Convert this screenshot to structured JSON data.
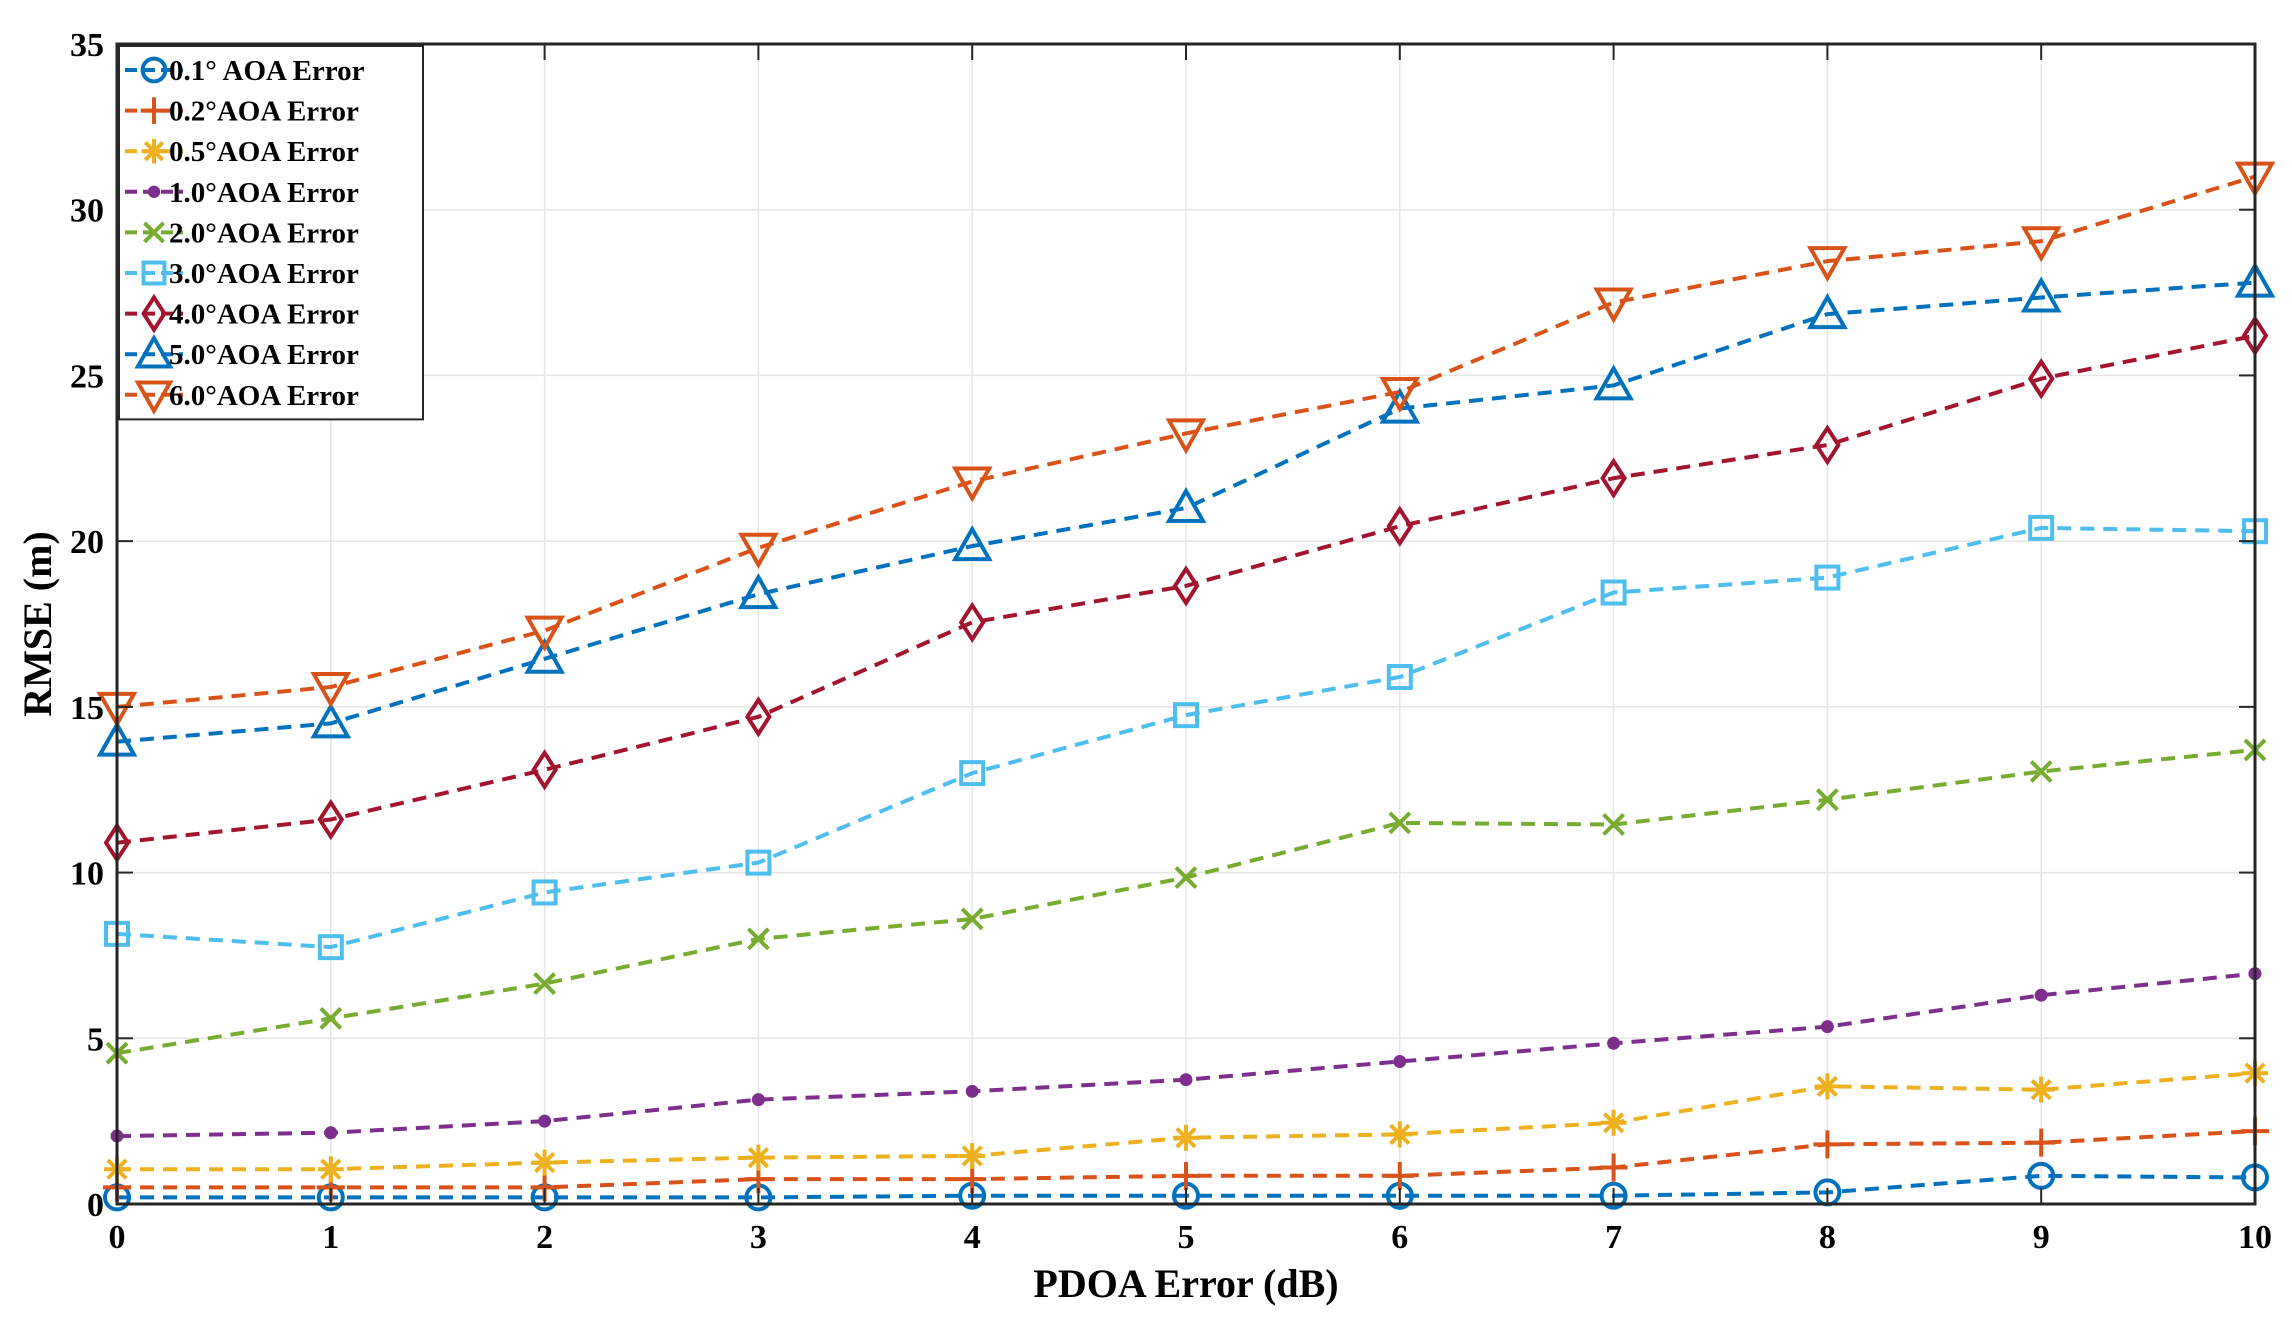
{
  "chart_data": {
    "type": "line",
    "title": "",
    "xlabel": "PDOA Error (dB)",
    "ylabel": "RMSE (m)",
    "xlim": [
      0,
      10
    ],
    "ylim": [
      0,
      35
    ],
    "xticks": [
      "0",
      "1",
      "2",
      "3",
      "4",
      "5",
      "6",
      "7",
      "8",
      "9",
      "10"
    ],
    "yticks": [
      "0",
      "5",
      "10",
      "15",
      "20",
      "25",
      "30",
      "35"
    ],
    "grid": true,
    "legend_position": "top-left",
    "x": [
      0,
      1,
      2,
      3,
      4,
      5,
      6,
      7,
      8,
      9,
      10
    ],
    "series": [
      {
        "name": "0.1° AOA Error",
        "marker": "circle",
        "color": "#0072BD",
        "values": [
          0.2,
          0.2,
          0.2,
          0.2,
          0.25,
          0.25,
          0.25,
          0.25,
          0.35,
          0.85,
          0.8
        ]
      },
      {
        "name": "0.2°AOA Error",
        "marker": "plus",
        "color": "#D95319",
        "values": [
          0.5,
          0.5,
          0.5,
          0.75,
          0.75,
          0.85,
          0.85,
          1.1,
          1.8,
          1.85,
          2.2
        ]
      },
      {
        "name": "0.5°AOA Error",
        "marker": "asterisk",
        "color": "#EDB120",
        "values": [
          1.05,
          1.05,
          1.25,
          1.4,
          1.45,
          2.0,
          2.1,
          2.45,
          3.55,
          3.45,
          3.95
        ]
      },
      {
        "name": "1.0°AOA Error",
        "marker": "dot",
        "color": "#7E2F8E",
        "values": [
          2.05,
          2.15,
          2.5,
          3.15,
          3.4,
          3.75,
          4.3,
          4.85,
          5.35,
          6.3,
          6.95
        ]
      },
      {
        "name": "2.0°AOA Error",
        "marker": "x",
        "color": "#77AC30",
        "values": [
          4.55,
          5.6,
          6.65,
          8.0,
          8.6,
          9.85,
          11.5,
          11.45,
          12.2,
          13.05,
          13.7
        ]
      },
      {
        "name": "3.0°AOA Error",
        "marker": "square",
        "color": "#4DBEEE",
        "values": [
          8.15,
          7.75,
          9.4,
          10.3,
          13.0,
          14.75,
          15.9,
          18.45,
          18.9,
          20.4,
          20.3
        ]
      },
      {
        "name": "4.0°AOA Error",
        "marker": "diamond",
        "color": "#A2142F",
        "values": [
          10.9,
          11.6,
          13.1,
          14.7,
          17.55,
          18.65,
          20.45,
          21.9,
          22.9,
          24.9,
          26.2
        ]
      },
      {
        "name": "5.0°AOA Error",
        "marker": "triangle-up",
        "color": "#0072BD",
        "values": [
          13.95,
          14.5,
          16.45,
          18.4,
          19.85,
          21.0,
          24.0,
          24.7,
          26.85,
          27.35,
          27.8
        ]
      },
      {
        "name": "6.0°AOA Error",
        "marker": "triangle-down",
        "color": "#D95319",
        "values": [
          15.0,
          15.6,
          17.3,
          19.8,
          21.8,
          23.25,
          24.5,
          27.2,
          28.45,
          29.05,
          31.0
        ]
      }
    ]
  }
}
